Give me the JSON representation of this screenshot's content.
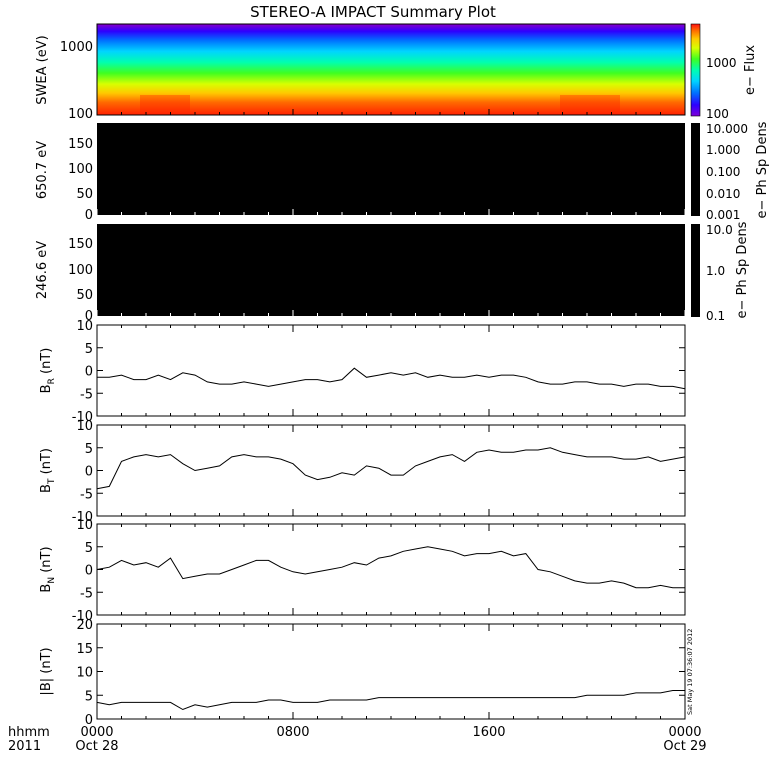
{
  "title": "STEREO-A IMPACT Summary Plot",
  "stamp": "Sat May 19 07:36:07 2012",
  "time_axis": {
    "row_label_1": "hhmm",
    "row_label_2": "2011",
    "ticks": [
      {
        "hhmm": "0000",
        "date": "Oct 28",
        "hours": 0
      },
      {
        "hhmm": "0800",
        "date": "",
        "hours": 8
      },
      {
        "hhmm": "1600",
        "date": "",
        "hours": 16
      },
      {
        "hhmm": "0000",
        "date": "Oct 29",
        "hours": 24
      }
    ]
  },
  "colors": {
    "spectrogram": [
      "#7e00d8",
      "#2d00ff",
      "#0070ff",
      "#00c8ff",
      "#00ffb0",
      "#30ff30",
      "#d8ff00",
      "#ffd000",
      "#ff7000",
      "#ff1010"
    ],
    "panel_black": "#000000",
    "line": "#000000"
  },
  "chart_data": [
    {
      "type": "heatmap",
      "panel": "swea",
      "ylabel": "SWEA (eV)",
      "yscale": "log",
      "yticks": [
        "100",
        "1000"
      ],
      "colorbar_label": "e− Flux",
      "colorbar_ticks": [
        "100",
        "1000"
      ],
      "xlim_hours": [
        0,
        24
      ]
    },
    {
      "type": "heatmap",
      "panel": "pad_650",
      "ylabel": "650.7 eV",
      "ylim": [
        0,
        180
      ],
      "yticks": [
        "0",
        "50",
        "100",
        "150"
      ],
      "colorbar_label": "e− Ph Sp Dens",
      "colorbar_ticks": [
        "0.001",
        "0.010",
        "0.100",
        "1.000",
        "10.000"
      ]
    },
    {
      "type": "heatmap",
      "panel": "pad_246",
      "ylabel": "246.6 eV",
      "ylim": [
        0,
        180
      ],
      "yticks": [
        "0",
        "50",
        "100",
        "150"
      ],
      "colorbar_label": "e− Ph Sp Dens",
      "colorbar_ticks": [
        "0.1",
        "1.0",
        "10.0"
      ]
    },
    {
      "type": "line",
      "panel": "br",
      "ylabel_main": "B",
      "ylabel_sub": "R",
      "ylabel_unit": " (nT)",
      "ylim": [
        -10,
        10
      ],
      "yticks": [
        "10",
        "5",
        "0",
        "-5",
        "-10"
      ],
      "x_hours": [
        0,
        0.5,
        1,
        1.5,
        2,
        2.5,
        3,
        3.5,
        4,
        4.5,
        5,
        5.5,
        6,
        6.5,
        7,
        7.5,
        8,
        8.5,
        9,
        9.5,
        10,
        10.5,
        11,
        11.5,
        12,
        12.5,
        13,
        13.5,
        14,
        14.5,
        15,
        15.5,
        16,
        16.5,
        17,
        17.5,
        18,
        18.5,
        19,
        19.5,
        20,
        20.5,
        21,
        21.5,
        22,
        22.5,
        23,
        23.5,
        24
      ],
      "y": [
        -1.5,
        -1.5,
        -1,
        -2,
        -2,
        -1,
        -2,
        -0.5,
        -1,
        -2.5,
        -3,
        -3,
        -2.5,
        -3,
        -3.5,
        -3,
        -2.5,
        -2,
        -2,
        -2.5,
        -2,
        0.5,
        -1.5,
        -1,
        -0.5,
        -1,
        -0.5,
        -1.5,
        -1,
        -1.5,
        -1.5,
        -1,
        -1.5,
        -1,
        -1,
        -1.5,
        -2.5,
        -3,
        -3,
        -2.5,
        -2.5,
        -3,
        -3,
        -3.5,
        -3,
        -3,
        -3.5,
        -3.5,
        -4
      ]
    },
    {
      "type": "line",
      "panel": "bt",
      "ylabel_main": "B",
      "ylabel_sub": "T",
      "ylabel_unit": " (nT)",
      "ylim": [
        -10,
        10
      ],
      "yticks": [
        "10",
        "5",
        "0",
        "-5",
        "-10"
      ],
      "x_hours": [
        0,
        0.5,
        1,
        1.5,
        2,
        2.5,
        3,
        3.5,
        4,
        4.5,
        5,
        5.5,
        6,
        6.5,
        7,
        7.5,
        8,
        8.5,
        9,
        9.5,
        10,
        10.5,
        11,
        11.5,
        12,
        12.5,
        13,
        13.5,
        14,
        14.5,
        15,
        15.5,
        16,
        16.5,
        17,
        17.5,
        18,
        18.5,
        19,
        19.5,
        20,
        20.5,
        21,
        21.5,
        22,
        22.5,
        23,
        23.5,
        24
      ],
      "y": [
        -4,
        -3.5,
        2,
        3,
        3.5,
        3,
        3.5,
        1.5,
        0,
        0.5,
        1,
        3,
        3.5,
        3,
        3,
        2.5,
        1.5,
        -1,
        -2,
        -1.5,
        -0.5,
        -1,
        1,
        0.5,
        -1,
        -1,
        1,
        2,
        3,
        3.5,
        2,
        4,
        4.5,
        4,
        4,
        4.5,
        4.5,
        5,
        4,
        3.5,
        3,
        3,
        3,
        2.5,
        2.5,
        3,
        2,
        2.5,
        3
      ]
    },
    {
      "type": "line",
      "panel": "bn",
      "ylabel_main": "B",
      "ylabel_sub": "N",
      "ylabel_unit": " (nT)",
      "ylim": [
        -10,
        10
      ],
      "yticks": [
        "10",
        "5",
        "0",
        "-5",
        "-10"
      ],
      "x_hours": [
        0,
        0.5,
        1,
        1.5,
        2,
        2.5,
        3,
        3.5,
        4,
        4.5,
        5,
        5.5,
        6,
        6.5,
        7,
        7.5,
        8,
        8.5,
        9,
        9.5,
        10,
        10.5,
        11,
        11.5,
        12,
        12.5,
        13,
        13.5,
        14,
        14.5,
        15,
        15.5,
        16,
        16.5,
        17,
        17.5,
        18,
        18.5,
        19,
        19.5,
        20,
        20.5,
        21,
        21.5,
        22,
        22.5,
        23,
        23.5,
        24
      ],
      "y": [
        0,
        0.5,
        2,
        1,
        1.5,
        0.5,
        2.5,
        -2,
        -1.5,
        -1,
        -1,
        0,
        1,
        2,
        2,
        0.5,
        -0.5,
        -1,
        -0.5,
        0,
        0.5,
        1.5,
        1,
        2.5,
        3,
        4,
        4.5,
        5,
        4.5,
        4,
        3,
        3.5,
        3.5,
        4,
        3,
        3.5,
        0,
        -0.5,
        -1.5,
        -2.5,
        -3,
        -3,
        -2.5,
        -3,
        -4,
        -4,
        -3.5,
        -4,
        -4
      ]
    },
    {
      "type": "line",
      "panel": "bmag",
      "ylabel_main": "|B| (nT)",
      "ylabel_sub": "",
      "ylabel_unit": "",
      "ylim": [
        0,
        20
      ],
      "yticks": [
        "20",
        "15",
        "10",
        "5",
        "0"
      ],
      "x_hours": [
        0,
        0.5,
        1,
        1.5,
        2,
        2.5,
        3,
        3.5,
        4,
        4.5,
        5,
        5.5,
        6,
        6.5,
        7,
        7.5,
        8,
        8.5,
        9,
        9.5,
        10,
        10.5,
        11,
        11.5,
        12,
        12.5,
        13,
        13.5,
        14,
        14.5,
        15,
        15.5,
        16,
        16.5,
        17,
        17.5,
        18,
        18.5,
        19,
        19.5,
        20,
        20.5,
        21,
        21.5,
        22,
        22.5,
        23,
        23.5,
        24
      ],
      "y": [
        3.5,
        3,
        3.5,
        3.5,
        3.5,
        3.5,
        3.5,
        2,
        3,
        2.5,
        3,
        3.5,
        3.5,
        3.5,
        4,
        4,
        3.5,
        3.5,
        3.5,
        4,
        4,
        4,
        4,
        4.5,
        4.5,
        4.5,
        4.5,
        4.5,
        4.5,
        4.5,
        4.5,
        4.5,
        4.5,
        4.5,
        4.5,
        4.5,
        4.5,
        4.5,
        4.5,
        4.5,
        5,
        5,
        5,
        5,
        5.5,
        5.5,
        5.5,
        6,
        6
      ]
    }
  ]
}
